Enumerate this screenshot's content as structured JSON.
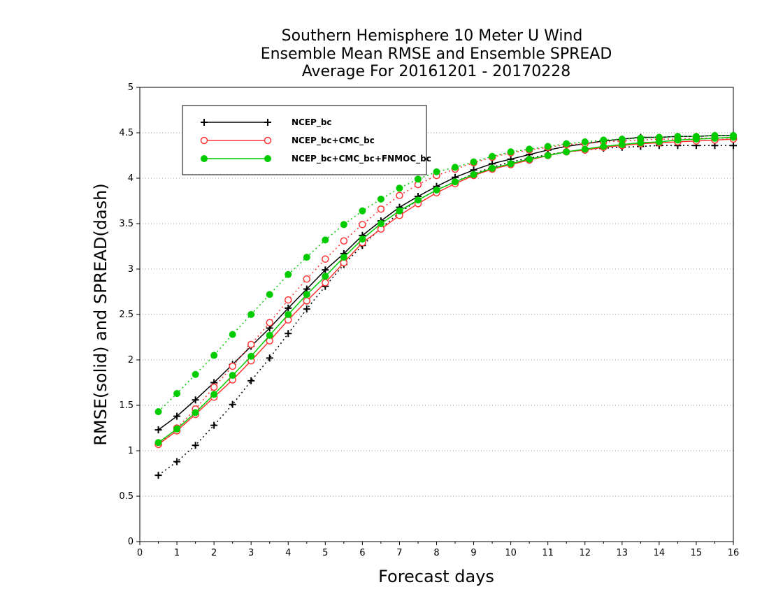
{
  "chart_data": {
    "type": "line",
    "title": [
      "Southern Hemisphere 10 Meter U Wind",
      "Ensemble Mean RMSE and Ensemble SPREAD",
      "Average For 20161201 - 20170228"
    ],
    "xlabel": "Forecast days",
    "ylabel": "RMSE(solid) and SPREAD(dash)",
    "xlim": [
      0,
      16
    ],
    "ylim": [
      0,
      5
    ],
    "xticks": [
      "0",
      "1",
      "2",
      "3",
      "4",
      "5",
      "6",
      "7",
      "8",
      "9",
      "10",
      "11",
      "12",
      "13",
      "14",
      "15",
      "16"
    ],
    "yticks": [
      "0",
      "0.5",
      "1",
      "1.5",
      "2",
      "2.5",
      "3",
      "3.5",
      "4",
      "4.5",
      "5"
    ],
    "grid": "horizontal dotted",
    "legend_position": "top-left",
    "x": [
      0.5,
      1,
      1.5,
      2,
      2.5,
      3,
      3.5,
      4,
      4.5,
      5,
      5.5,
      6,
      6.5,
      7,
      7.5,
      8,
      8.5,
      9,
      9.5,
      10,
      10.5,
      11,
      11.5,
      12,
      12.5,
      13,
      13.5,
      14,
      14.5,
      15,
      15.5,
      16
    ],
    "series": [
      {
        "name": "NCEP_bc",
        "color": "#000000",
        "marker": "plus",
        "rmse": [
          1.23,
          1.38,
          1.56,
          1.75,
          1.95,
          2.15,
          2.35,
          2.57,
          2.78,
          2.99,
          3.17,
          3.37,
          3.53,
          3.68,
          3.8,
          3.91,
          4.01,
          4.09,
          4.16,
          4.21,
          4.26,
          4.31,
          4.35,
          4.38,
          4.41,
          4.43,
          4.45,
          4.45,
          4.46,
          4.46,
          4.47,
          4.47
        ],
        "spread": [
          0.73,
          0.88,
          1.06,
          1.28,
          1.51,
          1.77,
          2.02,
          2.29,
          2.56,
          2.81,
          3.05,
          3.26,
          3.45,
          3.62,
          3.76,
          3.87,
          3.96,
          4.05,
          4.12,
          4.18,
          4.22,
          4.26,
          4.29,
          4.31,
          4.33,
          4.34,
          4.35,
          4.36,
          4.36,
          4.36,
          4.36,
          4.36
        ]
      },
      {
        "name": "NCEP_bc+CMC_bc",
        "color": "#ff3333",
        "marker": "open-circle",
        "rmse": [
          1.07,
          1.22,
          1.4,
          1.59,
          1.78,
          1.99,
          2.21,
          2.44,
          2.65,
          2.85,
          3.07,
          3.29,
          3.44,
          3.59,
          3.72,
          3.84,
          3.94,
          4.03,
          4.1,
          4.15,
          4.2,
          4.25,
          4.29,
          4.31,
          4.34,
          4.36,
          4.38,
          4.39,
          4.4,
          4.41,
          4.42,
          4.43
        ],
        "spread": [
          1.07,
          1.25,
          1.46,
          1.7,
          1.93,
          2.17,
          2.41,
          2.66,
          2.89,
          3.11,
          3.31,
          3.49,
          3.66,
          3.81,
          3.93,
          4.03,
          4.1,
          4.17,
          4.23,
          4.28,
          4.31,
          4.34,
          4.37,
          4.38,
          4.4,
          4.41,
          4.42,
          4.43,
          4.43,
          4.44,
          4.44,
          4.44
        ]
      },
      {
        "name": "NCEP_bc+CMC_bc+FNMOC_bc",
        "color": "#00cc00",
        "marker": "filled-circle",
        "rmse": [
          1.09,
          1.24,
          1.42,
          1.62,
          1.83,
          2.04,
          2.27,
          2.5,
          2.72,
          2.92,
          3.13,
          3.33,
          3.5,
          3.64,
          3.76,
          3.87,
          3.96,
          4.04,
          4.11,
          4.16,
          4.21,
          4.25,
          4.29,
          4.32,
          4.35,
          4.37,
          4.39,
          4.4,
          4.42,
          4.43,
          4.44,
          4.45
        ],
        "spread": [
          1.43,
          1.63,
          1.84,
          2.05,
          2.28,
          2.5,
          2.72,
          2.94,
          3.13,
          3.32,
          3.49,
          3.64,
          3.77,
          3.89,
          3.99,
          4.07,
          4.12,
          4.18,
          4.24,
          4.29,
          4.32,
          4.35,
          4.38,
          4.4,
          4.42,
          4.43,
          4.44,
          4.45,
          4.46,
          4.46,
          4.47,
          4.47
        ]
      }
    ]
  }
}
